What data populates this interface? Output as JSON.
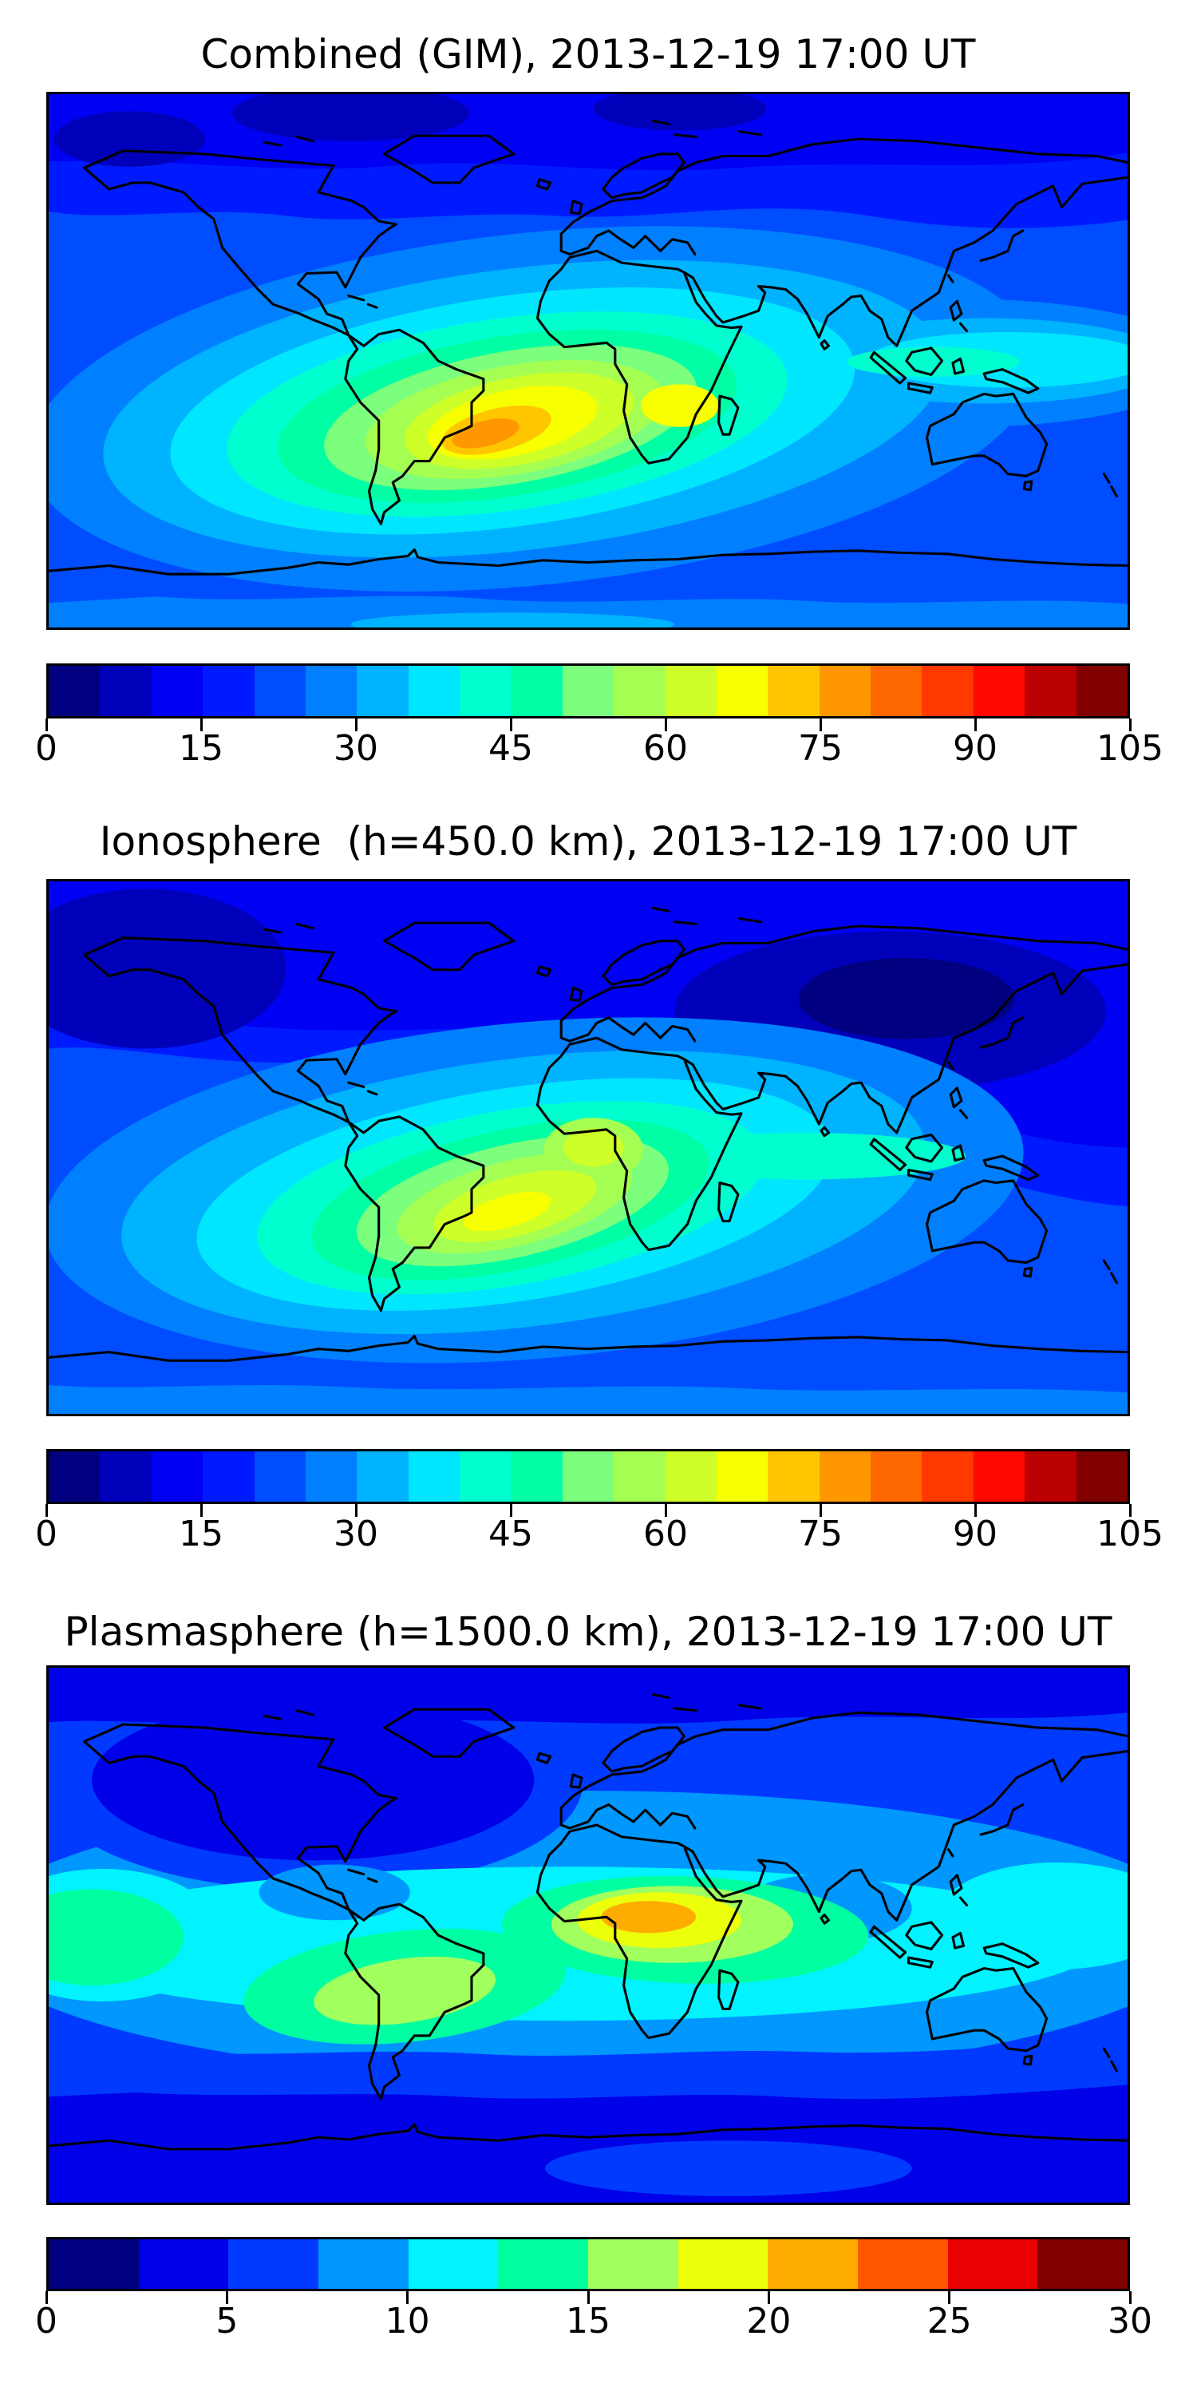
{
  "figure": {
    "background": "#ffffff"
  },
  "panels": [
    {
      "title": "Combined (GIM), 2013-12-19 17:00 UT",
      "colorbar": {
        "min": 0,
        "max": 105,
        "n_segments": 21,
        "ticks": [
          "0",
          "15",
          "30",
          "45",
          "60",
          "75",
          "90",
          "105"
        ],
        "colors": [
          "#000080",
          "#0000BA",
          "#0000F3",
          "#001AFF",
          "#004DFF",
          "#0080FF",
          "#00B3FF",
          "#00E6FF",
          "#00FFCE",
          "#00FFA5",
          "#7CFF7C",
          "#A5FF52",
          "#CEFF29",
          "#F7FF00",
          "#FFC600",
          "#FF9700",
          "#FF6800",
          "#FF3900",
          "#FF0900",
          "#BA0000",
          "#800000"
        ]
      }
    },
    {
      "title": "Ionosphere  (h=450.0 km), 2013-12-19 17:00 UT",
      "colorbar": {
        "min": 0,
        "max": 105,
        "n_segments": 21,
        "ticks": [
          "0",
          "15",
          "30",
          "45",
          "60",
          "75",
          "90",
          "105"
        ],
        "colors": [
          "#000080",
          "#0000BA",
          "#0000F3",
          "#001AFF",
          "#004DFF",
          "#0080FF",
          "#00B3FF",
          "#00E6FF",
          "#00FFCE",
          "#00FFA5",
          "#7CFF7C",
          "#A5FF52",
          "#CEFF29",
          "#F7FF00",
          "#FFC600",
          "#FF9700",
          "#FF6800",
          "#FF3900",
          "#FF0900",
          "#BA0000",
          "#800000"
        ]
      }
    },
    {
      "title": "Plasmasphere (h=1500.0 km), 2013-12-19 17:00 UT",
      "colorbar": {
        "min": 0,
        "max": 30,
        "n_segments": 12,
        "ticks": [
          "0",
          "5",
          "10",
          "15",
          "20",
          "25",
          "30"
        ],
        "colors": [
          "#000080",
          "#0000E9",
          "#003AFF",
          "#0097FF",
          "#00F3FF",
          "#00FFA1",
          "#A1FF5E",
          "#ECFF0B",
          "#FFAC00",
          "#FF5700",
          "#E90000",
          "#800000"
        ]
      }
    }
  ],
  "chart_data": [
    {
      "type": "heatmap",
      "subtype": "filled_contour_world_map",
      "title": "Combined (GIM), 2013-12-19 17:00 UT",
      "projection": "equirectangular",
      "lon_range": [
        -180,
        180
      ],
      "lat_range": [
        -90,
        90
      ],
      "colormap": "jet",
      "levels": {
        "min": 0,
        "max": 105,
        "step": 5
      },
      "colorbar_ticks": [
        0,
        15,
        30,
        45,
        60,
        75,
        90,
        105
      ],
      "legend_position": "horizontal colorbar below map",
      "features": [
        {
          "label": "primary maximum",
          "approx_value": 80,
          "location": "southeastern South America / South Atlantic (~25S, 40W)"
        },
        {
          "label": "secondary yellow lobe",
          "approx_value": 65,
          "location": "equatorial Africa (~5S, 15E)"
        },
        {
          "label": "cyan equatorial ridge",
          "approx_value": 40,
          "location": "extends east across Indian Ocean and Pacific"
        },
        {
          "label": "minimum",
          "approx_value": 5,
          "location": "high northern latitudes (Arctic / Siberia)"
        },
        {
          "label": "southern low band",
          "approx_value": 20,
          "location": "southern high latitudes"
        }
      ]
    },
    {
      "type": "heatmap",
      "subtype": "filled_contour_world_map",
      "title": "Ionosphere  (h=450.0 km), 2013-12-19 17:00 UT",
      "projection": "equirectangular",
      "lon_range": [
        -180,
        180
      ],
      "lat_range": [
        -90,
        90
      ],
      "colormap": "jet",
      "levels": {
        "min": 0,
        "max": 105,
        "step": 5
      },
      "colorbar_ticks": [
        0,
        15,
        30,
        45,
        60,
        75,
        90,
        105
      ],
      "legend_position": "horizontal colorbar below map",
      "features": [
        {
          "label": "primary maximum",
          "approx_value": 65,
          "location": "southeastern South America / South Atlantic (~28S, 50W)"
        },
        {
          "label": "secondary green lobe",
          "approx_value": 55,
          "location": "southwest Africa coast (~10S, 10E)"
        },
        {
          "label": "minimum",
          "approx_value": 2,
          "location": "high-latitude north Pacific and Siberia / northeast Asia"
        },
        {
          "label": "southern low band",
          "approx_value": 20,
          "location": "southern high latitudes"
        }
      ]
    },
    {
      "type": "heatmap",
      "subtype": "filled_contour_world_map",
      "title": "Plasmasphere (h=1500.0 km), 2013-12-19 17:00 UT",
      "projection": "equirectangular",
      "lon_range": [
        -180,
        180
      ],
      "lat_range": [
        -90,
        90
      ],
      "colormap": "jet",
      "levels": {
        "min": 0,
        "max": 30,
        "step": 2.5
      },
      "colorbar_ticks": [
        0,
        5,
        10,
        15,
        20,
        25,
        30
      ],
      "legend_position": "horizontal colorbar below map",
      "features": [
        {
          "label": "primary maximum",
          "approx_value": 22,
          "location": "central / northern Africa (~12N, 20E)"
        },
        {
          "label": "yellow-green lobe",
          "approx_value": 17,
          "location": "central South America (~18S, 60W)"
        },
        {
          "label": "cyan equatorial band",
          "approx_value": 11,
          "location": "winds along low latitudes around the globe"
        },
        {
          "label": "dark minimum oval",
          "approx_value": 2,
          "location": "North America / north Atlantic (~50N, 80W)"
        },
        {
          "label": "southern minimum band",
          "approx_value": 3,
          "location": "southern high latitudes"
        }
      ]
    }
  ]
}
